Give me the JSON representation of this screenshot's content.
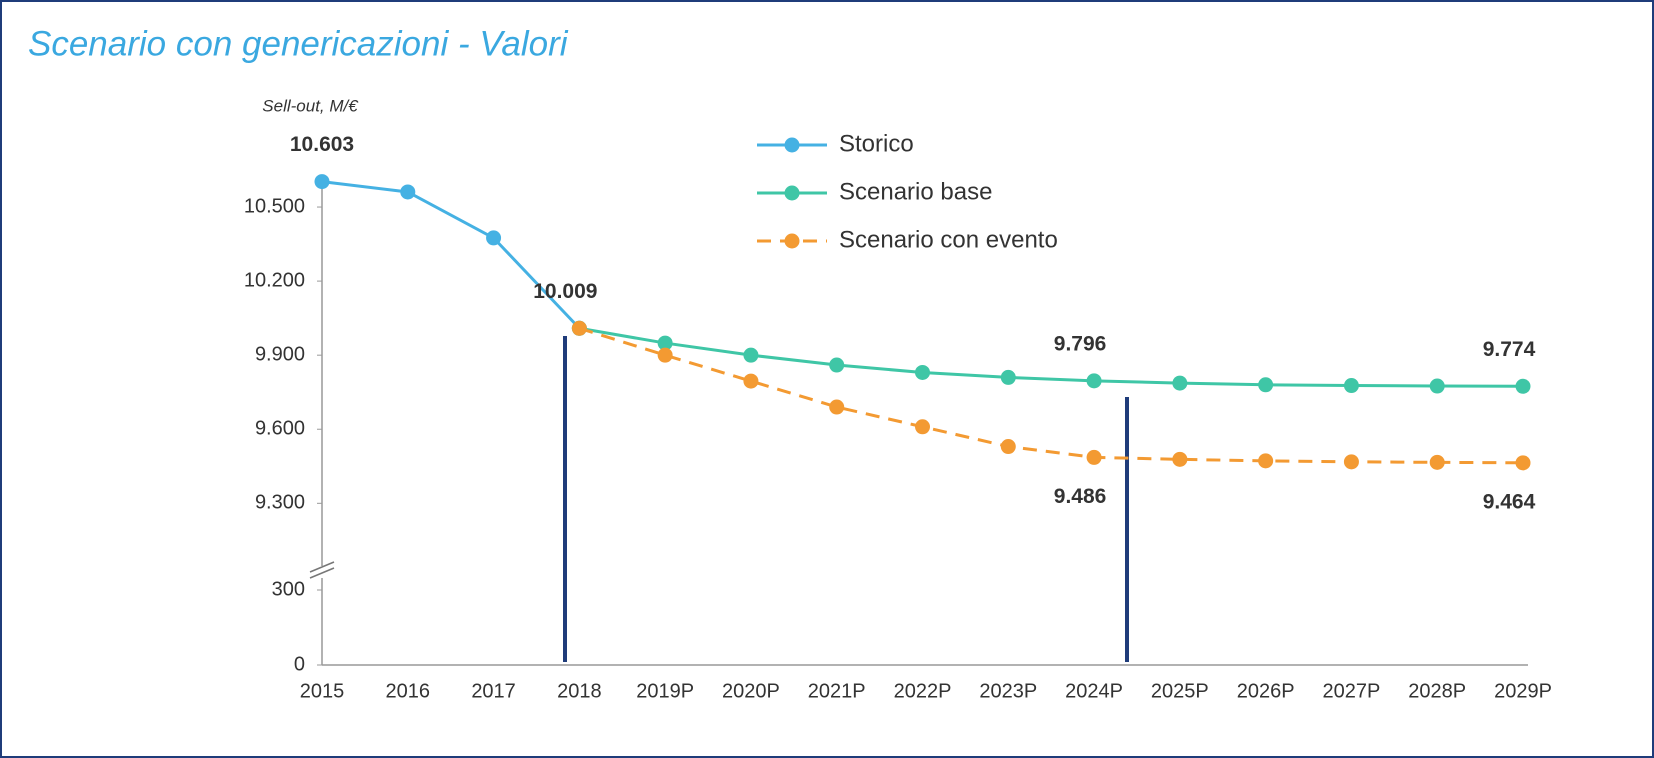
{
  "chart_data": {
    "type": "line",
    "title": "Scenario con genericazioni - Valori",
    "y_label": "Sell-out, M/€",
    "categories": [
      "2015",
      "2016",
      "2017",
      "2018",
      "2019P",
      "2020P",
      "2021P",
      "2022P",
      "2023P",
      "2024P",
      "2025P",
      "2026P",
      "2027P",
      "2028P",
      "2029P"
    ],
    "series": [
      {
        "name": "Storico",
        "color": "#45b1e3",
        "dashed": false,
        "values": [
          10603,
          10561,
          10375,
          10009,
          null,
          null,
          null,
          null,
          null,
          null,
          null,
          null,
          null,
          null,
          null
        ],
        "value_labels": [
          "10.603",
          null,
          null,
          "10.009",
          null,
          null,
          null,
          null,
          null,
          null,
          null,
          null,
          null,
          null,
          null
        ]
      },
      {
        "name": "Scenario base",
        "color": "#3fc6a6",
        "dashed": false,
        "values": [
          null,
          null,
          null,
          10009,
          9949,
          9900,
          9860,
          9830,
          9810,
          9796,
          9787,
          9780,
          9777,
          9775,
          9774
        ],
        "value_labels": [
          null,
          null,
          null,
          null,
          null,
          null,
          null,
          null,
          null,
          "9.796",
          null,
          null,
          null,
          null,
          "9.774"
        ]
      },
      {
        "name": "Scenario con evento",
        "color": "#f39a32",
        "dashed": true,
        "values": [
          null,
          null,
          null,
          10009,
          9900,
          9795,
          9690,
          9610,
          9530,
          9486,
          9478,
          9472,
          9468,
          9466,
          9464
        ],
        "value_labels": [
          null,
          null,
          null,
          null,
          null,
          null,
          null,
          null,
          null,
          "9.486",
          null,
          null,
          null,
          null,
          "9.464"
        ]
      }
    ],
    "axis_break": true,
    "ylim_segments": [
      [
        0,
        300
      ],
      [
        9200,
        10650
      ]
    ],
    "yticks": [
      0,
      300,
      {
        "value": 9300,
        "label": "9.300"
      },
      {
        "value": 9600,
        "label": "9.600"
      },
      {
        "value": 9900,
        "label": "9.900"
      },
      {
        "value": 10200,
        "label": "10.200"
      },
      {
        "value": 10500,
        "label": "10.500"
      }
    ],
    "legend": "top-center",
    "grid": false
  }
}
